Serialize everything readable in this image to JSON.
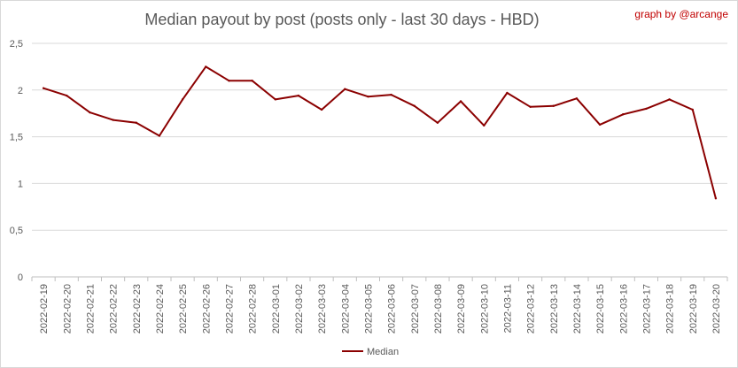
{
  "chart_data": {
    "type": "line",
    "title": "Median payout by post (posts only - last 30 days - HBD)",
    "credit": "graph by @arcange",
    "xlabel": "",
    "ylabel": "",
    "ylim": [
      0,
      2.5
    ],
    "yticks": [
      "0",
      "0,5",
      "1",
      "1,5",
      "2",
      "2,5"
    ],
    "grid": "horizontal",
    "legend_position": "bottom",
    "categories": [
      "2022-02-19",
      "2022-02-20",
      "2022-02-21",
      "2022-02-22",
      "2022-02-23",
      "2022-02-24",
      "2022-02-25",
      "2022-02-26",
      "2022-02-27",
      "2022-02-28",
      "2022-03-01",
      "2022-03-02",
      "2022-03-03",
      "2022-03-04",
      "2022-03-05",
      "2022-03-06",
      "2022-03-07",
      "2022-03-08",
      "2022-03-09",
      "2022-03-10",
      "2022-03-11",
      "2022-03-12",
      "2022-03-13",
      "2022-03-14",
      "2022-03-15",
      "2022-03-16",
      "2022-03-17",
      "2022-03-18",
      "2022-03-19",
      "2022-03-20"
    ],
    "series": [
      {
        "name": "Median",
        "color": "#8b0000",
        "values": [
          2.02,
          1.94,
          1.76,
          1.68,
          1.65,
          1.51,
          1.9,
          2.25,
          2.1,
          2.1,
          1.9,
          1.94,
          1.79,
          2.01,
          1.93,
          1.95,
          1.83,
          1.65,
          1.88,
          1.62,
          1.97,
          1.82,
          1.83,
          1.91,
          1.63,
          1.74,
          1.8,
          1.9,
          1.79,
          0.84
        ]
      }
    ]
  }
}
